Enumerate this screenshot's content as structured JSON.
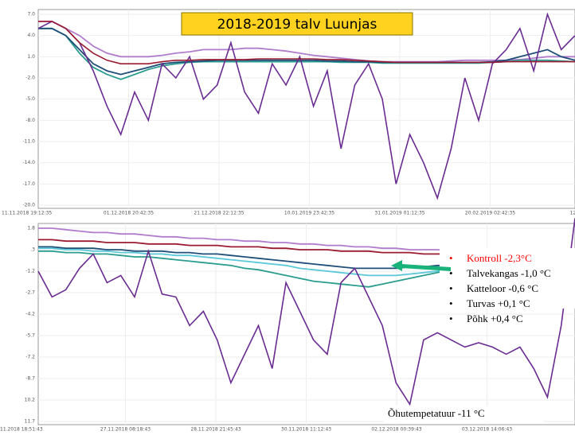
{
  "title": "2018-2019 talv Luunjas",
  "chart_data": [
    {
      "type": "line",
      "yticks": [
        {
          "value": 7,
          "label": "7.0"
        },
        {
          "value": 4,
          "label": "4.0"
        },
        {
          "value": 1,
          "label": "1.0"
        },
        {
          "value": -2,
          "label": "-2.0"
        },
        {
          "value": -5,
          "label": "-5.0"
        },
        {
          "value": -8,
          "label": "-8.0"
        },
        {
          "value": -11,
          "label": "-11.0"
        },
        {
          "value": -14,
          "label": "-14.0"
        },
        {
          "value": -17,
          "label": "-17.0"
        },
        {
          "value": -20,
          "label": "-20.0"
        }
      ],
      "ylim": [
        7,
        -20
      ],
      "xtick_labels": [
        "11.11.2018 19:12:35",
        "01.12.2018 20:42:35",
        "21.12.2018 22:12:35",
        "10.01.2019 23:42:35",
        "31.01.2019 01:12:35",
        "20.02.2019 02:42:35",
        "12.03.20"
      ],
      "grid": true,
      "series": [
        {
          "color": "#b07ccc",
          "values": [
            6,
            6,
            5,
            4,
            2.5,
            1.5,
            1,
            1,
            1,
            1.2,
            1.5,
            1.7,
            2,
            2,
            2,
            2.2,
            2.2,
            2,
            1.8,
            1.5,
            1.2,
            1,
            0.8,
            0.6,
            0.4,
            0.3,
            0.3,
            0.3,
            0.3,
            0.3,
            0.4,
            0.5,
            0.5,
            0.5,
            0.5,
            0.6,
            0.8,
            1,
            1,
            1
          ]
        },
        {
          "color": "#2a9d8f",
          "values": [
            5,
            5,
            4,
            1.5,
            -0.5,
            -1.5,
            -2.2,
            -1.5,
            -0.8,
            -0.3,
            0,
            0.2,
            0.3,
            0.3,
            0.3,
            0.3,
            0.3,
            0.3,
            0.3,
            0.3,
            0.3,
            0.3,
            0.2,
            0.2,
            0.2,
            0.1,
            0.1,
            0.1,
            0.1,
            0.1,
            0.1,
            0.1,
            0.1,
            0.2,
            0.3,
            0.5,
            0.5,
            0.5,
            0.4,
            0.3
          ]
        },
        {
          "color": "#1f4e79",
          "values": [
            5,
            5,
            4,
            2,
            0,
            -1,
            -1.5,
            -1,
            -0.5,
            0,
            0.2,
            0.3,
            0.4,
            0.5,
            0.5,
            0.5,
            0.5,
            0.5,
            0.5,
            0.5,
            0.5,
            0.4,
            0.4,
            0.3,
            0.3,
            0.2,
            0.2,
            0.2,
            0.2,
            0.2,
            0.2,
            0.2,
            0.2,
            0.3,
            0.5,
            1,
            1.5,
            2,
            1,
            0.5
          ]
        },
        {
          "color": "#6a2c91",
          "values": [
            5,
            6,
            5,
            3,
            -1,
            -6,
            -10,
            -4,
            -8,
            0,
            -2,
            1,
            -5,
            -3,
            3,
            -4,
            -7,
            0,
            -3,
            1,
            -6,
            -1,
            -12,
            -3,
            0,
            -5,
            -17,
            -10,
            -14,
            -19,
            -12,
            -2,
            -8,
            0,
            2,
            5,
            -1,
            7,
            2,
            4
          ]
        },
        {
          "color": "#9b1b30",
          "values": [
            6,
            6,
            5,
            3,
            1.5,
            0.5,
            0,
            0,
            0,
            0.3,
            0.5,
            0.5,
            0.6,
            0.6,
            0.6,
            0.6,
            0.7,
            0.7,
            0.7,
            0.7,
            0.7,
            0.6,
            0.6,
            0.5,
            0.4,
            0.3,
            0.2,
            0.2,
            0.2,
            0.2,
            0.2,
            0.2,
            0.2,
            0.2,
            0.3,
            0.3,
            0.3,
            0.3,
            0.3,
            0.3
          ]
        }
      ]
    },
    {
      "type": "line",
      "yticks": [
        1.8,
        {
          "value": 0.3,
          "label": ".3"
        },
        -1.2,
        -2.7,
        -4.2,
        -5.7,
        -7.2,
        -8.7,
        {
          "value": -10.2,
          "label": "10.2"
        },
        {
          "value": -11.7,
          "label": "11.7"
        }
      ],
      "ylim": [
        1.8,
        -11.7
      ],
      "xtick_labels": [
        "11.2018 18:51:43",
        "27.11.2018 08:18:43",
        "28.11.2018 21:45:43",
        "30.11.2018 11:12:43",
        "02.12.2018 00:39:43",
        "03.12.2018 14:06:43"
      ],
      "grid": true,
      "series": [
        {
          "color": "#b07ccc",
          "values": [
            1.8,
            1.8,
            1.7,
            1.6,
            1.5,
            1.5,
            1.4,
            1.4,
            1.3,
            1.2,
            1.2,
            1.1,
            1.1,
            1.0,
            1.0,
            0.9,
            0.9,
            0.8,
            0.8,
            0.7,
            0.7,
            0.6,
            0.6,
            0.5,
            0.5,
            0.4,
            0.4,
            0.3,
            0.3,
            0.3,
            0.2,
            0.2,
            0.1,
            0.1,
            0.1,
            0,
            0,
            0,
            0,
            0
          ]
        },
        {
          "color": "#9b1b30",
          "values": [
            1.0,
            1.0,
            0.9,
            0.9,
            0.9,
            0.8,
            0.8,
            0.8,
            0.7,
            0.7,
            0.7,
            0.6,
            0.6,
            0.6,
            0.5,
            0.5,
            0.5,
            0.4,
            0.4,
            0.3,
            0.3,
            0.3,
            0.2,
            0.2,
            0.2,
            0.1,
            0.1,
            0.1,
            0,
            0,
            0,
            -0.1,
            -0.1,
            -0.1,
            -0.2,
            -0.2,
            -0.2,
            -0.2,
            -0.3,
            -0.3
          ]
        },
        {
          "color": "#1f4e79",
          "values": [
            0.5,
            0.5,
            0.4,
            0.4,
            0.4,
            0.3,
            0.3,
            0.2,
            0.2,
            0.2,
            0.1,
            0.1,
            0,
            0,
            -0.1,
            -0.2,
            -0.3,
            -0.4,
            -0.5,
            -0.6,
            -0.7,
            -0.8,
            -0.9,
            -1.0,
            -1.0,
            -1.0,
            -1.0,
            -0.9,
            -0.9,
            -0.8,
            -0.8,
            -0.8,
            -0.7,
            -0.7,
            -0.6,
            -0.5,
            -0.5,
            -0.4,
            -0.3,
            -0.2
          ]
        },
        {
          "color": "#5bc8d9",
          "values": [
            0.4,
            0.4,
            0.3,
            0.3,
            0.2,
            0.2,
            0.1,
            0.1,
            0,
            0,
            -0.1,
            -0.1,
            -0.2,
            -0.3,
            -0.4,
            -0.5,
            -0.6,
            -0.7,
            -0.8,
            -1.0,
            -1.1,
            -1.2,
            -1.3,
            -1.4,
            -1.5,
            -1.5,
            -1.5,
            -1.4,
            -1.3,
            -1.2,
            -1.1,
            -1.0,
            -0.9,
            -0.8,
            -0.7,
            -0.6,
            -0.5,
            -0.4,
            -0.3,
            -0.2
          ]
        },
        {
          "color": "#2a9d8f",
          "values": [
            0.2,
            0.2,
            0.1,
            0.1,
            0,
            0,
            -0.1,
            -0.2,
            -0.2,
            -0.3,
            -0.4,
            -0.5,
            -0.6,
            -0.7,
            -0.8,
            -1.0,
            -1.1,
            -1.3,
            -1.5,
            -1.7,
            -1.9,
            -2.0,
            -2.1,
            -2.2,
            -2.3,
            -2.1,
            -1.9,
            -1.7,
            -1.5,
            -1.3,
            -1.1,
            -1.0,
            -0.9,
            -0.8,
            -0.7,
            -0.6,
            -0.5,
            -0.4,
            -0.3,
            -0.2
          ]
        },
        {
          "color": "#6a2c91",
          "values": [
            -1.2,
            -3,
            -2.5,
            -1,
            0,
            -2,
            -1.5,
            -3,
            0.2,
            -2.8,
            -3,
            -5,
            -4,
            -6,
            -9,
            -7,
            -5,
            -8,
            -2,
            -4,
            -6,
            -7,
            -2,
            -1,
            -3,
            -5,
            -9,
            -10.5,
            -6,
            -5.5,
            -6,
            -6.5,
            -6.2,
            -6.5,
            -7,
            -6.5,
            -8,
            -10,
            -5,
            2.5
          ]
        }
      ]
    }
  ],
  "legend_items": [
    {
      "text": "Kontroll  -2,3°C",
      "color": "#ff0000"
    },
    {
      "text": "Talvekangas -1,0 °C",
      "color": "#000000"
    },
    {
      "text": "Katteloor -0,6 °C",
      "color": "#000000"
    },
    {
      "text": "Turvas +0,1 °C",
      "color": "#000000"
    },
    {
      "text": "Põhk  +0,4 °C",
      "color": "#000000"
    }
  ],
  "air_note": "Õhutempetatuur -11 °C"
}
